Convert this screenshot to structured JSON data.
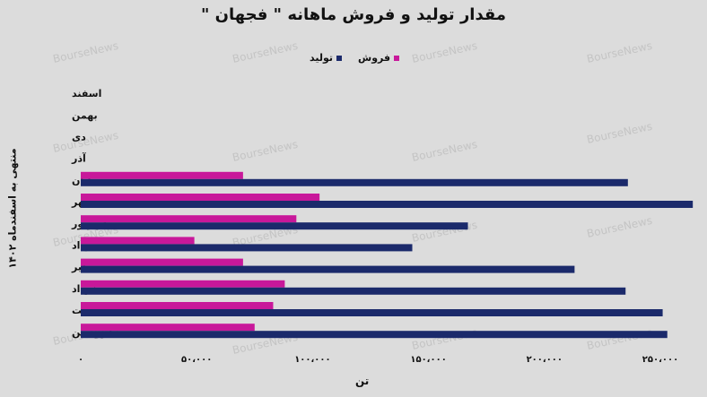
{
  "chart_data": {
    "type": "bar",
    "orientation": "horizontal",
    "title": "مقدار تولید و فروش ماهانه \" فجهان \"",
    "xlabel": "تن",
    "ylabel": "منتهی به اسفندماه ۱۴۰۲",
    "categories": [
      "فروردین",
      "اردیبهشت",
      "خرداد",
      "تیر",
      "مرداد",
      "شهریور",
      "مهر",
      "آبان",
      "آذر",
      "دی",
      "بهمن",
      "اسفند"
    ],
    "xlim": [
      0,
      250000
    ],
    "x_ticks": [
      0,
      50000,
      100000,
      150000,
      200000,
      250000
    ],
    "x_tick_labels": [
      "۰",
      "۵۰،۰۰۰",
      "۱۰۰،۰۰۰",
      "۱۵۰،۰۰۰",
      "۲۰۰،۰۰۰",
      "۲۵۰،۰۰۰"
    ],
    "series": [
      {
        "name": "فروش",
        "color": "#c8189a",
        "values": [
          75000,
          83000,
          88000,
          70000,
          49000,
          93000,
          103000,
          70000,
          null,
          null,
          null,
          null
        ]
      },
      {
        "name": "تولید",
        "color": "#1b2a6b",
        "values": [
          253000,
          251000,
          235000,
          213000,
          143000,
          167000,
          264000,
          236000,
          null,
          null,
          null,
          null
        ]
      }
    ],
    "legend_position": "top",
    "grid": false
  },
  "watermark": "BourseNews"
}
